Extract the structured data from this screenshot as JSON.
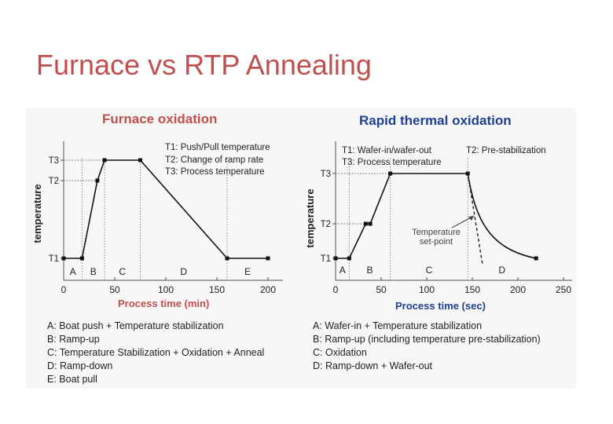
{
  "slide": {
    "title": "Furnace vs RTP Annealing"
  },
  "colors": {
    "title": "#c0504d",
    "heading_red": "#c0504d",
    "heading_blue": "#1f3f8f",
    "line": "#111111"
  },
  "chart_data": [
    {
      "type": "line",
      "title": "Furnace oxidation",
      "xlabel": "Process time (min)",
      "ylabel": "temperature",
      "x_ticks": [
        0,
        50,
        100,
        150,
        200
      ],
      "xlim": [
        0,
        200
      ],
      "y_levels": [
        "T1",
        "T2",
        "T3"
      ],
      "annotations": [
        "T1: Push/Pull temperature",
        "T2: Change of ramp rate",
        "T3: Process temperature"
      ],
      "segments": [
        "A",
        "B",
        "C",
        "D",
        "E"
      ],
      "segment_bounds": [
        0,
        18,
        40,
        75,
        160,
        200
      ],
      "series": [
        {
          "points": [
            [
              0,
              "T1"
            ],
            [
              18,
              "T1"
            ],
            [
              33,
              "T2"
            ],
            [
              40,
              "T3"
            ],
            [
              75,
              "T3"
            ],
            [
              160,
              "T1"
            ],
            [
              200,
              "T1"
            ]
          ]
        }
      ],
      "legend_items": [
        "A: Boat push + Temperature stabilization",
        "B: Ramp-up",
        "C: Temperature Stabilization + Oxidation + Anneal",
        "D: Ramp-down",
        "E: Boat pull"
      ]
    },
    {
      "type": "line",
      "title": "Rapid thermal oxidation",
      "xlabel": "Process time (sec)",
      "ylabel": "temperature",
      "x_ticks": [
        0,
        50,
        100,
        150,
        200,
        250
      ],
      "xlim": [
        0,
        250
      ],
      "y_levels": [
        "T1",
        "T2",
        "T3"
      ],
      "annotations": [
        "T1: Wafer-in/wafer-out",
        "T2: Pre-stabilization",
        "T3: Process temperature",
        "Temperature",
        "set-point"
      ],
      "segments": [
        "A",
        "B",
        "C",
        "D"
      ],
      "segment_bounds": [
        0,
        15,
        60,
        145,
        220
      ],
      "series": [
        {
          "points": [
            [
              0,
              "T1"
            ],
            [
              15,
              "T1"
            ],
            [
              33,
              "T2"
            ],
            [
              38,
              "T2"
            ],
            [
              60,
              "T3"
            ],
            [
              145,
              "T3"
            ],
            [
              220,
              "T1"
            ]
          ]
        }
      ],
      "legend_items": [
        "A: Wafer-in + Temperature stabilization",
        "B: Ramp-up (including temperature pre-stabilization)",
        "C: Oxidation",
        "D: Ramp-down + Wafer-out"
      ]
    }
  ]
}
